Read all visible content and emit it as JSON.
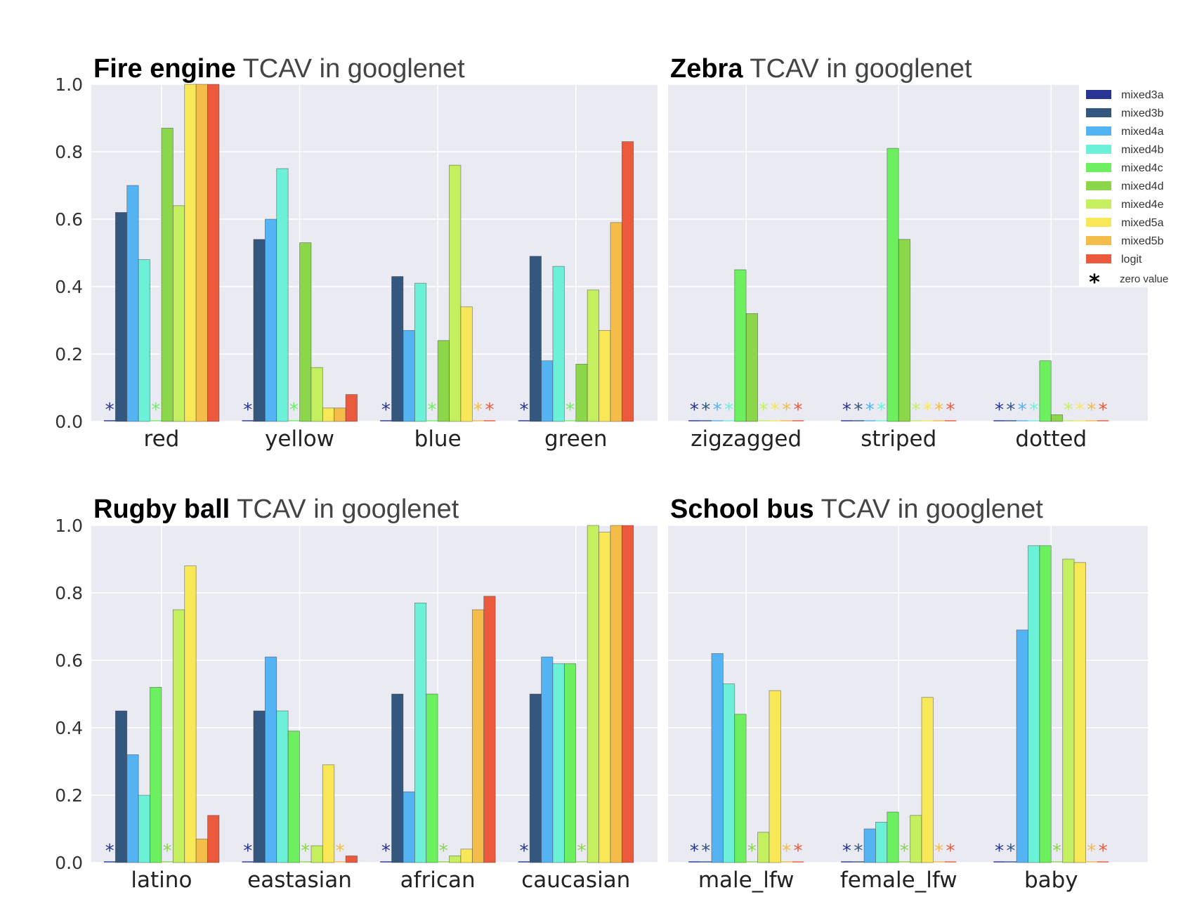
{
  "colors": {
    "mixed3a": "#283593",
    "mixed3b": "#34577f",
    "mixed4a": "#54b3f2",
    "mixed4b": "#6df0d8",
    "mixed4c": "#6cf060",
    "mixed4d": "#8cd64a",
    "mixed4e": "#c4f060",
    "mixed5a": "#f8e858",
    "mixed5b": "#f4bc48",
    "logit": "#ec5a3e",
    "panel_bg": "#eaeaf2",
    "grid": "#ffffff"
  },
  "legend": {
    "placement": "top-right of Zebra panel",
    "entries": [
      {
        "key": "mixed3a",
        "label": "mixed3a"
      },
      {
        "key": "mixed3b",
        "label": "mixed3b"
      },
      {
        "key": "mixed4a",
        "label": "mixed4a"
      },
      {
        "key": "mixed4b",
        "label": "mixed4b"
      },
      {
        "key": "mixed4c",
        "label": "mixed4c"
      },
      {
        "key": "mixed4d",
        "label": "mixed4d"
      },
      {
        "key": "mixed4e",
        "label": "mixed4e"
      },
      {
        "key": "mixed5a",
        "label": "mixed5a"
      },
      {
        "key": "mixed5b",
        "label": "mixed5b"
      },
      {
        "key": "logit",
        "label": "logit"
      }
    ],
    "zero_marker": "*",
    "zero_label": "zero value"
  },
  "chart_data": [
    {
      "type": "bar",
      "title_bold": "Fire engine",
      "title_rest": " TCAV in googlenet",
      "ylim": [
        0,
        1.0
      ],
      "yticks": [
        "0.0",
        "0.2",
        "0.4",
        "0.6",
        "0.8",
        "1.0"
      ],
      "grid": true,
      "series_order": [
        "mixed3a",
        "mixed3b",
        "mixed4a",
        "mixed4b",
        "mixed4c",
        "mixed4d",
        "mixed4e",
        "mixed5a",
        "mixed5b",
        "logit"
      ],
      "categories": [
        "red",
        "yellow",
        "blue",
        "green"
      ],
      "values": [
        [
          0,
          0.62,
          0.7,
          0.48,
          0,
          0.87,
          0.64,
          1.0,
          1.0,
          1.0
        ],
        [
          0,
          0.54,
          0.6,
          0.75,
          0,
          0.53,
          0.16,
          0.04,
          0.04,
          0.08
        ],
        [
          0,
          0.43,
          0.27,
          0.41,
          0,
          0.24,
          0.76,
          0.34,
          0,
          0
        ],
        [
          0,
          0.49,
          0.18,
          0.46,
          0,
          0.17,
          0.39,
          0.27,
          0.59,
          0.83
        ]
      ]
    },
    {
      "type": "bar",
      "title_bold": "Zebra",
      "title_rest": " TCAV in googlenet",
      "ylim": [
        0,
        1.0
      ],
      "yticks": [],
      "grid": true,
      "series_order": [
        "mixed3a",
        "mixed3b",
        "mixed4a",
        "mixed4b",
        "mixed4c",
        "mixed4d",
        "mixed4e",
        "mixed5a",
        "mixed5b",
        "logit"
      ],
      "categories": [
        "zigzagged",
        "striped",
        "dotted"
      ],
      "values": [
        [
          0,
          0,
          0,
          0,
          0.45,
          0.32,
          0,
          0,
          0,
          0
        ],
        [
          0,
          0,
          0,
          0,
          0.81,
          0.54,
          0,
          0,
          0,
          0
        ],
        [
          0,
          0,
          0,
          0,
          0.18,
          0.02,
          0,
          0,
          0,
          0
        ]
      ]
    },
    {
      "type": "bar",
      "title_bold": "Rugby ball",
      "title_rest": " TCAV in googlenet",
      "ylim": [
        0,
        1.0
      ],
      "yticks": [
        "0.0",
        "0.2",
        "0.4",
        "0.6",
        "0.8",
        "1.0"
      ],
      "grid": true,
      "series_order": [
        "mixed3a",
        "mixed3b",
        "mixed4a",
        "mixed4b",
        "mixed4c",
        "mixed4d",
        "mixed4e",
        "mixed5a",
        "mixed5b",
        "logit"
      ],
      "categories": [
        "latino",
        "eastasian",
        "african",
        "caucasian"
      ],
      "values": [
        [
          0,
          0.45,
          0.32,
          0.2,
          0.52,
          0,
          0.75,
          0.88,
          0.07,
          0.14
        ],
        [
          0,
          0.45,
          0.61,
          0.45,
          0.39,
          0,
          0.05,
          0.29,
          0,
          0.02
        ],
        [
          0,
          0.5,
          0.21,
          0.77,
          0.5,
          0,
          0.02,
          0.04,
          0.75,
          0.79
        ],
        [
          0,
          0.5,
          0.61,
          0.59,
          0.59,
          0,
          1.0,
          0.98,
          1.0,
          1.0
        ]
      ]
    },
    {
      "type": "bar",
      "title_bold": "School bus",
      "title_rest": " TCAV in googlenet",
      "ylim": [
        0,
        1.0
      ],
      "yticks": [],
      "grid": true,
      "series_order": [
        "mixed3a",
        "mixed3b",
        "mixed4a",
        "mixed4b",
        "mixed4c",
        "mixed4d",
        "mixed4e",
        "mixed5a",
        "mixed5b",
        "logit"
      ],
      "categories": [
        "male_lfw",
        "female_lfw",
        "baby"
      ],
      "values": [
        [
          0,
          0,
          0.62,
          0.53,
          0.44,
          0,
          0.09,
          0.51,
          0,
          0
        ],
        [
          0,
          0,
          0.1,
          0.12,
          0.15,
          0,
          0.14,
          0.49,
          0,
          0
        ],
        [
          0,
          0,
          0.69,
          0.94,
          0.94,
          0,
          0.9,
          0.89,
          0,
          0
        ]
      ]
    }
  ]
}
